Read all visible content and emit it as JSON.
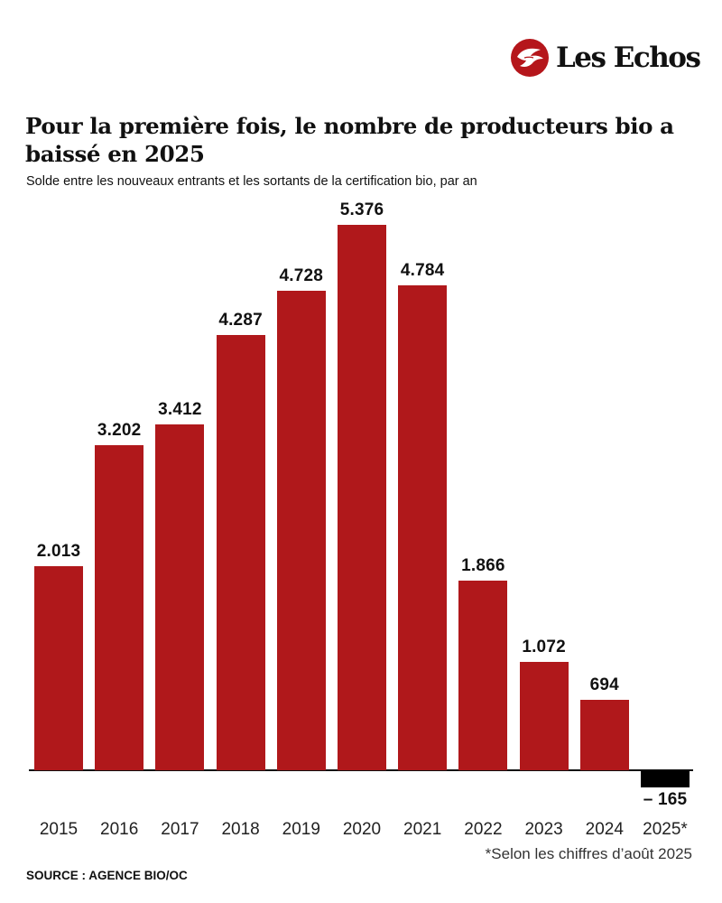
{
  "brand": {
    "logo_text": "Les Echos",
    "logo_icon": "winged-figure-icon",
    "color": "#b5161b"
  },
  "header": {
    "title": "Pour la première fois, le nombre de producteurs bio a baissé en 2025",
    "subtitle": "Solde entre les nouveaux entrants et les sortants de la certification bio, par an"
  },
  "footer": {
    "note": "*Selon les chiffres d’août 2025",
    "source": "SOURCE : AGENCE BIO/OC"
  },
  "colors": {
    "positive_bar": "#b0181b",
    "negative_bar": "#000000",
    "axis": "#111111"
  },
  "bars": [
    {
      "year": "2015",
      "value": 2013,
      "label": "2.013"
    },
    {
      "year": "2016",
      "value": 3202,
      "label": "3.202"
    },
    {
      "year": "2017",
      "value": 3412,
      "label": "3.412"
    },
    {
      "year": "2018",
      "value": 4287,
      "label": "4.287"
    },
    {
      "year": "2019",
      "value": 4728,
      "label": "4.728"
    },
    {
      "year": "2020",
      "value": 5376,
      "label": "5.376"
    },
    {
      "year": "2021",
      "value": 4784,
      "label": "4.784"
    },
    {
      "year": "2022",
      "value": 1866,
      "label": "1.866"
    },
    {
      "year": "2023",
      "value": 1072,
      "label": "1.072"
    },
    {
      "year": "2024",
      "value": 694,
      "label": "694"
    },
    {
      "year": "2025*",
      "value": -165,
      "label": "– 165"
    }
  ],
  "chart_data": {
    "type": "bar",
    "title": "Pour la première fois, le nombre de producteurs bio a baissé en 2025",
    "subtitle": "Solde entre les nouveaux entrants et les sortants de la certification bio, par an",
    "categories": [
      "2015",
      "2016",
      "2017",
      "2018",
      "2019",
      "2020",
      "2021",
      "2022",
      "2023",
      "2024",
      "2025*"
    ],
    "values": [
      2013,
      3202,
      3412,
      4287,
      4728,
      5376,
      4784,
      1866,
      1072,
      694,
      -165
    ],
    "data_labels": [
      "2.013",
      "3.202",
      "3.412",
      "4.287",
      "4.728",
      "5.376",
      "4.784",
      "1.866",
      "1.072",
      "694",
      "– 165"
    ],
    "xlabel": "",
    "ylabel": "",
    "ylim": [
      -165,
      5376
    ],
    "grid": false,
    "legend": null,
    "annotations": [
      "*Selon les chiffres d’août 2025"
    ],
    "source": "SOURCE : AGENCE BIO/OC"
  }
}
